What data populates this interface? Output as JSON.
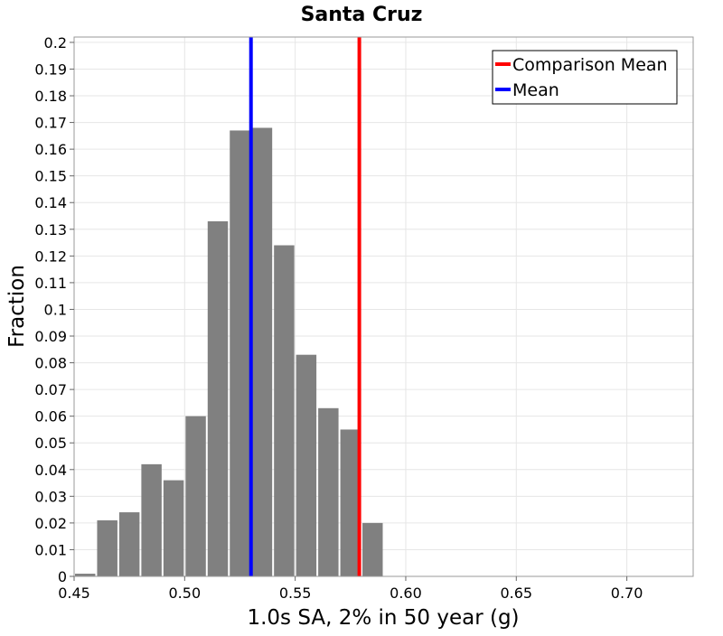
{
  "chart_data": {
    "type": "bar",
    "title": "Santa Cruz",
    "xlabel": "1.0s SA, 2% in 50 year (g)",
    "ylabel": "Fraction",
    "xlim": [
      0.45,
      0.73
    ],
    "ylim": [
      0,
      0.202
    ],
    "x_ticks": [
      0.45,
      0.5,
      0.55,
      0.6,
      0.65,
      0.7
    ],
    "x_tick_labels": [
      "0.45",
      "0.50",
      "0.55",
      "0.60",
      "0.65",
      "0.70"
    ],
    "y_ticks": [
      0,
      0.01,
      0.02,
      0.03,
      0.04,
      0.05,
      0.06,
      0.07,
      0.08,
      0.09,
      0.1,
      0.11,
      0.12,
      0.13,
      0.14,
      0.15,
      0.16,
      0.17,
      0.18,
      0.19,
      0.2
    ],
    "y_tick_labels": [
      "0",
      "0.01",
      "0.02",
      "0.03",
      "0.04",
      "0.05",
      "0.06",
      "0.07",
      "0.08",
      "0.09",
      "0.1",
      "0.11",
      "0.12",
      "0.13",
      "0.14",
      "0.15",
      "0.16",
      "0.17",
      "0.18",
      "0.19",
      "0.2"
    ],
    "bin_width": 0.01,
    "bins": [
      {
        "x": 0.455,
        "value": 0.001
      },
      {
        "x": 0.465,
        "value": 0.021
      },
      {
        "x": 0.475,
        "value": 0.024
      },
      {
        "x": 0.485,
        "value": 0.042
      },
      {
        "x": 0.495,
        "value": 0.036
      },
      {
        "x": 0.505,
        "value": 0.06
      },
      {
        "x": 0.515,
        "value": 0.133
      },
      {
        "x": 0.525,
        "value": 0.167
      },
      {
        "x": 0.535,
        "value": 0.168
      },
      {
        "x": 0.545,
        "value": 0.124
      },
      {
        "x": 0.555,
        "value": 0.083
      },
      {
        "x": 0.565,
        "value": 0.063
      },
      {
        "x": 0.575,
        "value": 0.055
      },
      {
        "x": 0.585,
        "value": 0.02
      }
    ],
    "bar_color": "#808080",
    "vertical_lines": [
      {
        "name": "Comparison Mean",
        "x": 0.579,
        "color": "#ff0000"
      },
      {
        "name": "Mean",
        "x": 0.53,
        "color": "#0000ff"
      }
    ],
    "grid": true,
    "legend_position": "top-right"
  }
}
